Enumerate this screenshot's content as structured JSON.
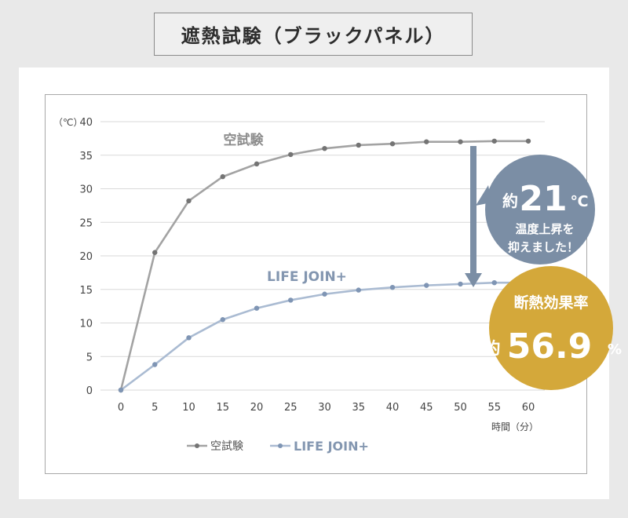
{
  "page_title": "遮熱試験（ブラックパネル）",
  "chart_data": {
    "type": "line",
    "x": [
      0,
      5,
      10,
      15,
      20,
      25,
      30,
      35,
      40,
      45,
      50,
      55,
      60
    ],
    "xlabel": "時間（分）",
    "ylabel": "（℃）",
    "ylim": [
      0,
      40
    ],
    "yticks": [
      0,
      5,
      10,
      15,
      20,
      25,
      30,
      35,
      40
    ],
    "grid": true,
    "legend_position": "bottom",
    "series": [
      {
        "name": "空試験",
        "color": "#a3a3a3",
        "marker_color": "#747474",
        "values": [
          0,
          20.5,
          28.2,
          31.8,
          33.7,
          35.1,
          36.0,
          36.5,
          36.7,
          37.0,
          37.0,
          37.1,
          37.1
        ]
      },
      {
        "name": "LIFE JOIN+",
        "color": "#aabbd2",
        "marker_color": "#7f95b4",
        "values": [
          0,
          3.8,
          7.8,
          10.5,
          12.2,
          13.4,
          14.3,
          14.9,
          15.3,
          15.6,
          15.8,
          16.0,
          16.0
        ]
      }
    ],
    "series_labels": [
      "空試験",
      "LIFE JOIN+"
    ],
    "annotations": {
      "temp_drop": {
        "prefix": "約",
        "value": "21",
        "unit": "℃",
        "line1": "温度上昇を",
        "line2": "抑えました！",
        "color": "#7b8ea5"
      },
      "insulation": {
        "title": "断熱効果率",
        "prefix": "約",
        "value": "56.9",
        "unit": "%",
        "color": "#d4a83a"
      },
      "arrow_color": "#7b8ea5"
    }
  }
}
